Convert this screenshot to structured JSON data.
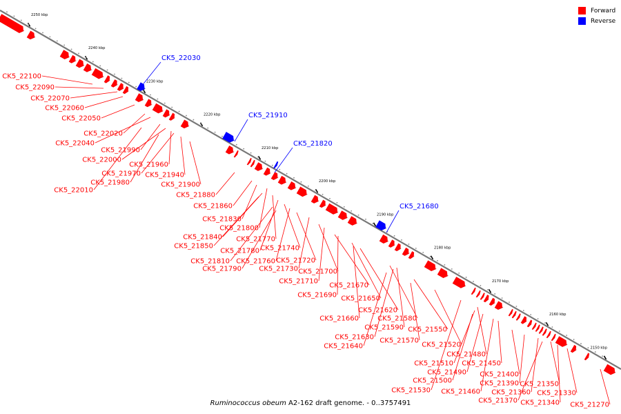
{
  "caption": {
    "organism": "Ruminococcus obeum",
    "rest": " A2-162 draft genome. - 0..3757491"
  },
  "legend": [
    {
      "label": "Forward",
      "color": "#ff0000"
    },
    {
      "label": "Reverse",
      "color": "#0000ff"
    }
  ],
  "colors": {
    "forward": "#ff0000",
    "reverse": "#0000ff",
    "backbone": "#777777"
  },
  "ticks": [
    "2250 kbp",
    "2240 kbp",
    "2230 kbp",
    "2220 kbp",
    "2210 kbp",
    "2200 kbp",
    "2190 kbp",
    "2180 kbp",
    "2170 kbp",
    "2160 kbp",
    "2150 kbp"
  ],
  "reverse_genes": [
    "CK5_22030",
    "CK5_21910",
    "CK5_21820",
    "CK5_21680"
  ],
  "forward_genes": [
    "CK5_22100",
    "CK5_22090",
    "CK5_22070",
    "CK5_22060",
    "CK5_22050",
    "CK5_22020",
    "CK5_22040",
    "CK5_21990",
    "CK5_22000",
    "CK5_21960",
    "CK5_21970",
    "CK5_21940",
    "CK5_21980",
    "CK5_21900",
    "CK5_22010",
    "CK5_21880",
    "CK5_21860",
    "CK5_21830",
    "CK5_21800",
    "CK5_21840",
    "CK5_21770",
    "CK5_21850",
    "CK5_21780",
    "CK5_21740",
    "CK5_21810",
    "CK5_21760",
    "CK5_21720",
    "CK5_21790",
    "CK5_21730",
    "CK5_21700",
    "CK5_21710",
    "CK5_21670",
    "CK5_21690",
    "CK5_21650",
    "CK5_21620",
    "CK5_21660",
    "CK5_21580",
    "CK5_21590",
    "CK5_21550",
    "CK5_21630",
    "CK5_21570",
    "CK5_21640",
    "CK5_21520",
    "CK5_21480",
    "CK5_21450",
    "CK5_21510",
    "CK5_21490",
    "CK5_21400",
    "CK5_21500",
    "CK5_21390",
    "CK5_21350",
    "CK5_21360",
    "CK5_21530",
    "CK5_21460",
    "CK5_21330",
    "CK5_21370",
    "CK5_21340",
    "CK5_21270"
  ]
}
